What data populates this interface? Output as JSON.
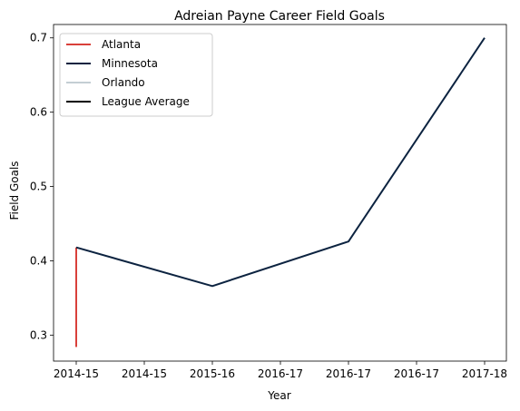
{
  "chart_data": {
    "type": "line",
    "title": "Adreian Payne Career Field Goals",
    "xlabel": "Year",
    "ylabel": "Field Goals",
    "x_tick_labels": [
      "2014-15",
      "2014-15",
      "2015-16",
      "2016-17",
      "2016-17",
      "2016-17",
      "2017-18"
    ],
    "ylim": [
      0.265,
      0.718
    ],
    "yticks": [
      0.3,
      0.4,
      0.5,
      0.6,
      0.7
    ],
    "legend_position": "top-left",
    "grid": false,
    "series": [
      {
        "name": "Atlanta",
        "color": "#d9403a",
        "points": [
          [
            0,
            0.284
          ],
          [
            0,
            0.418
          ]
        ]
      },
      {
        "name": "Minnesota",
        "color": "#0c2340",
        "points": [
          [
            0,
            0.418
          ],
          [
            2,
            0.366
          ],
          [
            4,
            0.426
          ],
          [
            6,
            0.7
          ]
        ]
      },
      {
        "name": "Orlando",
        "color": "#c4ced4",
        "points": []
      },
      {
        "name": "League Average",
        "color": "#000000",
        "points": []
      }
    ]
  }
}
